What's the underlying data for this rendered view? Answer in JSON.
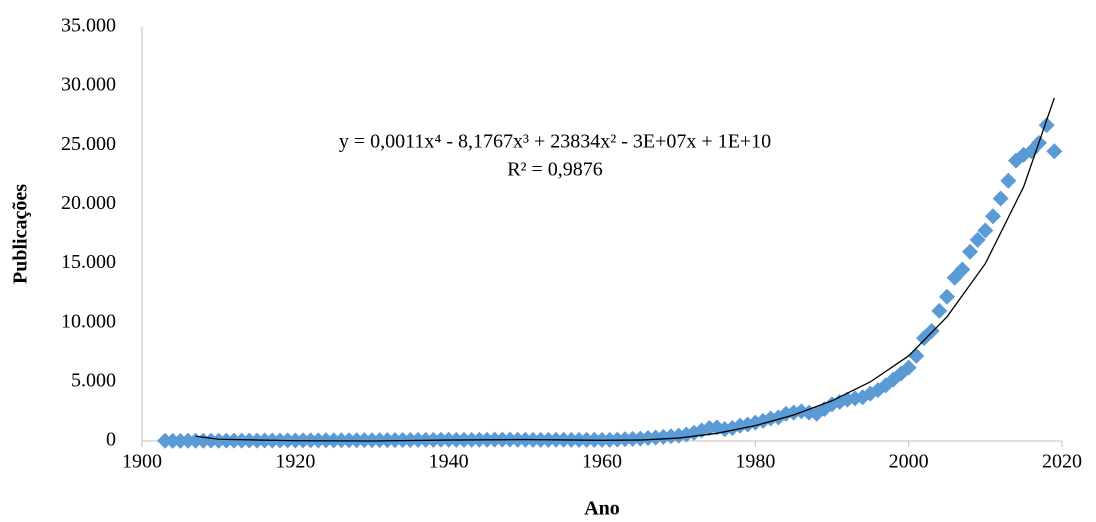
{
  "chart_data": {
    "type": "scatter",
    "x_label": "Ano",
    "y_label": "Publicações",
    "annotations": [
      "y = 0,0011x⁴ - 8,1767x³ + 23834x² - 3E+07x + 1E+10",
      "R² = 0,9876"
    ],
    "xlim": [
      1900,
      2020
    ],
    "xticks": [
      1900,
      1920,
      1940,
      1960,
      1980,
      2000,
      2020
    ],
    "ylim": [
      0,
      35000
    ],
    "yticks": [
      0,
      {
        "value": 5000,
        "label": "5.000"
      },
      {
        "value": 10000,
        "label": "10.000"
      },
      {
        "value": 15000,
        "label": "15.000"
      },
      {
        "value": 20000,
        "label": "20.000"
      },
      {
        "value": 25000,
        "label": "25.000"
      },
      {
        "value": 30000,
        "label": "30.000"
      },
      {
        "value": 35000,
        "label": "35.000"
      }
    ],
    "grid": false,
    "color": "#5b9bd5",
    "x": [
      1903,
      1904,
      1905,
      1906,
      1907,
      1908,
      1909,
      1910,
      1911,
      1912,
      1913,
      1914,
      1915,
      1916,
      1917,
      1918,
      1919,
      1920,
      1921,
      1922,
      1923,
      1924,
      1925,
      1926,
      1927,
      1928,
      1929,
      1930,
      1931,
      1932,
      1933,
      1934,
      1935,
      1936,
      1937,
      1938,
      1939,
      1940,
      1941,
      1942,
      1943,
      1944,
      1945,
      1946,
      1947,
      1948,
      1949,
      1950,
      1951,
      1952,
      1953,
      1954,
      1955,
      1956,
      1957,
      1958,
      1959,
      1960,
      1961,
      1962,
      1963,
      1964,
      1965,
      1966,
      1967,
      1968,
      1969,
      1970,
      1971,
      1972,
      1973,
      1974,
      1975,
      1976,
      1977,
      1978,
      1979,
      1980,
      1981,
      1982,
      1983,
      1984,
      1985,
      1986,
      1987,
      1988,
      1989,
      1990,
      1991,
      1992,
      1993,
      1994,
      1995,
      1996,
      1997,
      1998,
      1999,
      2000,
      2001,
      2002,
      2003,
      2004,
      2005,
      2006,
      2007,
      2008,
      2009,
      2010,
      2011,
      2012,
      2013,
      2014,
      2015,
      2016,
      2017,
      2018,
      2019
    ],
    "values": [
      20,
      10,
      15,
      20,
      25,
      20,
      30,
      25,
      30,
      35,
      30,
      40,
      35,
      40,
      45,
      40,
      50,
      45,
      50,
      55,
      50,
      60,
      55,
      60,
      65,
      60,
      70,
      65,
      70,
      75,
      70,
      80,
      85,
      90,
      95,
      100,
      105,
      110,
      100,
      95,
      100,
      105,
      110,
      115,
      120,
      115,
      110,
      105,
      100,
      95,
      100,
      105,
      110,
      100,
      95,
      90,
      95,
      100,
      100,
      120,
      150,
      180,
      200,
      250,
      300,
      350,
      400,
      450,
      550,
      700,
      900,
      1100,
      1150,
      1000,
      1100,
      1300,
      1400,
      1550,
      1700,
      1900,
      2000,
      2300,
      2400,
      2500,
      2400,
      2300,
      2700,
      3100,
      3300,
      3500,
      3600,
      3700,
      4000,
      4300,
      4700,
      5200,
      5700,
      6200,
      7200,
      8700,
      9300,
      11000,
      12200,
      13800,
      14500,
      16000,
      17000,
      17800,
      19000,
      20500,
      22000,
      23700,
      24200,
      24500,
      25200,
      26700,
      24500
    ],
    "trendline": {
      "color": "#000000",
      "x": [
        1907,
        1910,
        1920,
        1930,
        1940,
        1950,
        1960,
        1965,
        1970,
        1975,
        1980,
        1985,
        1990,
        1995,
        2000,
        2005,
        2010,
        2015,
        2019
      ],
      "values": [
        400,
        150,
        20,
        0,
        80,
        120,
        60,
        80,
        250,
        650,
        1300,
        2200,
        3400,
        5000,
        7200,
        10500,
        15000,
        21500,
        29000
      ]
    }
  }
}
